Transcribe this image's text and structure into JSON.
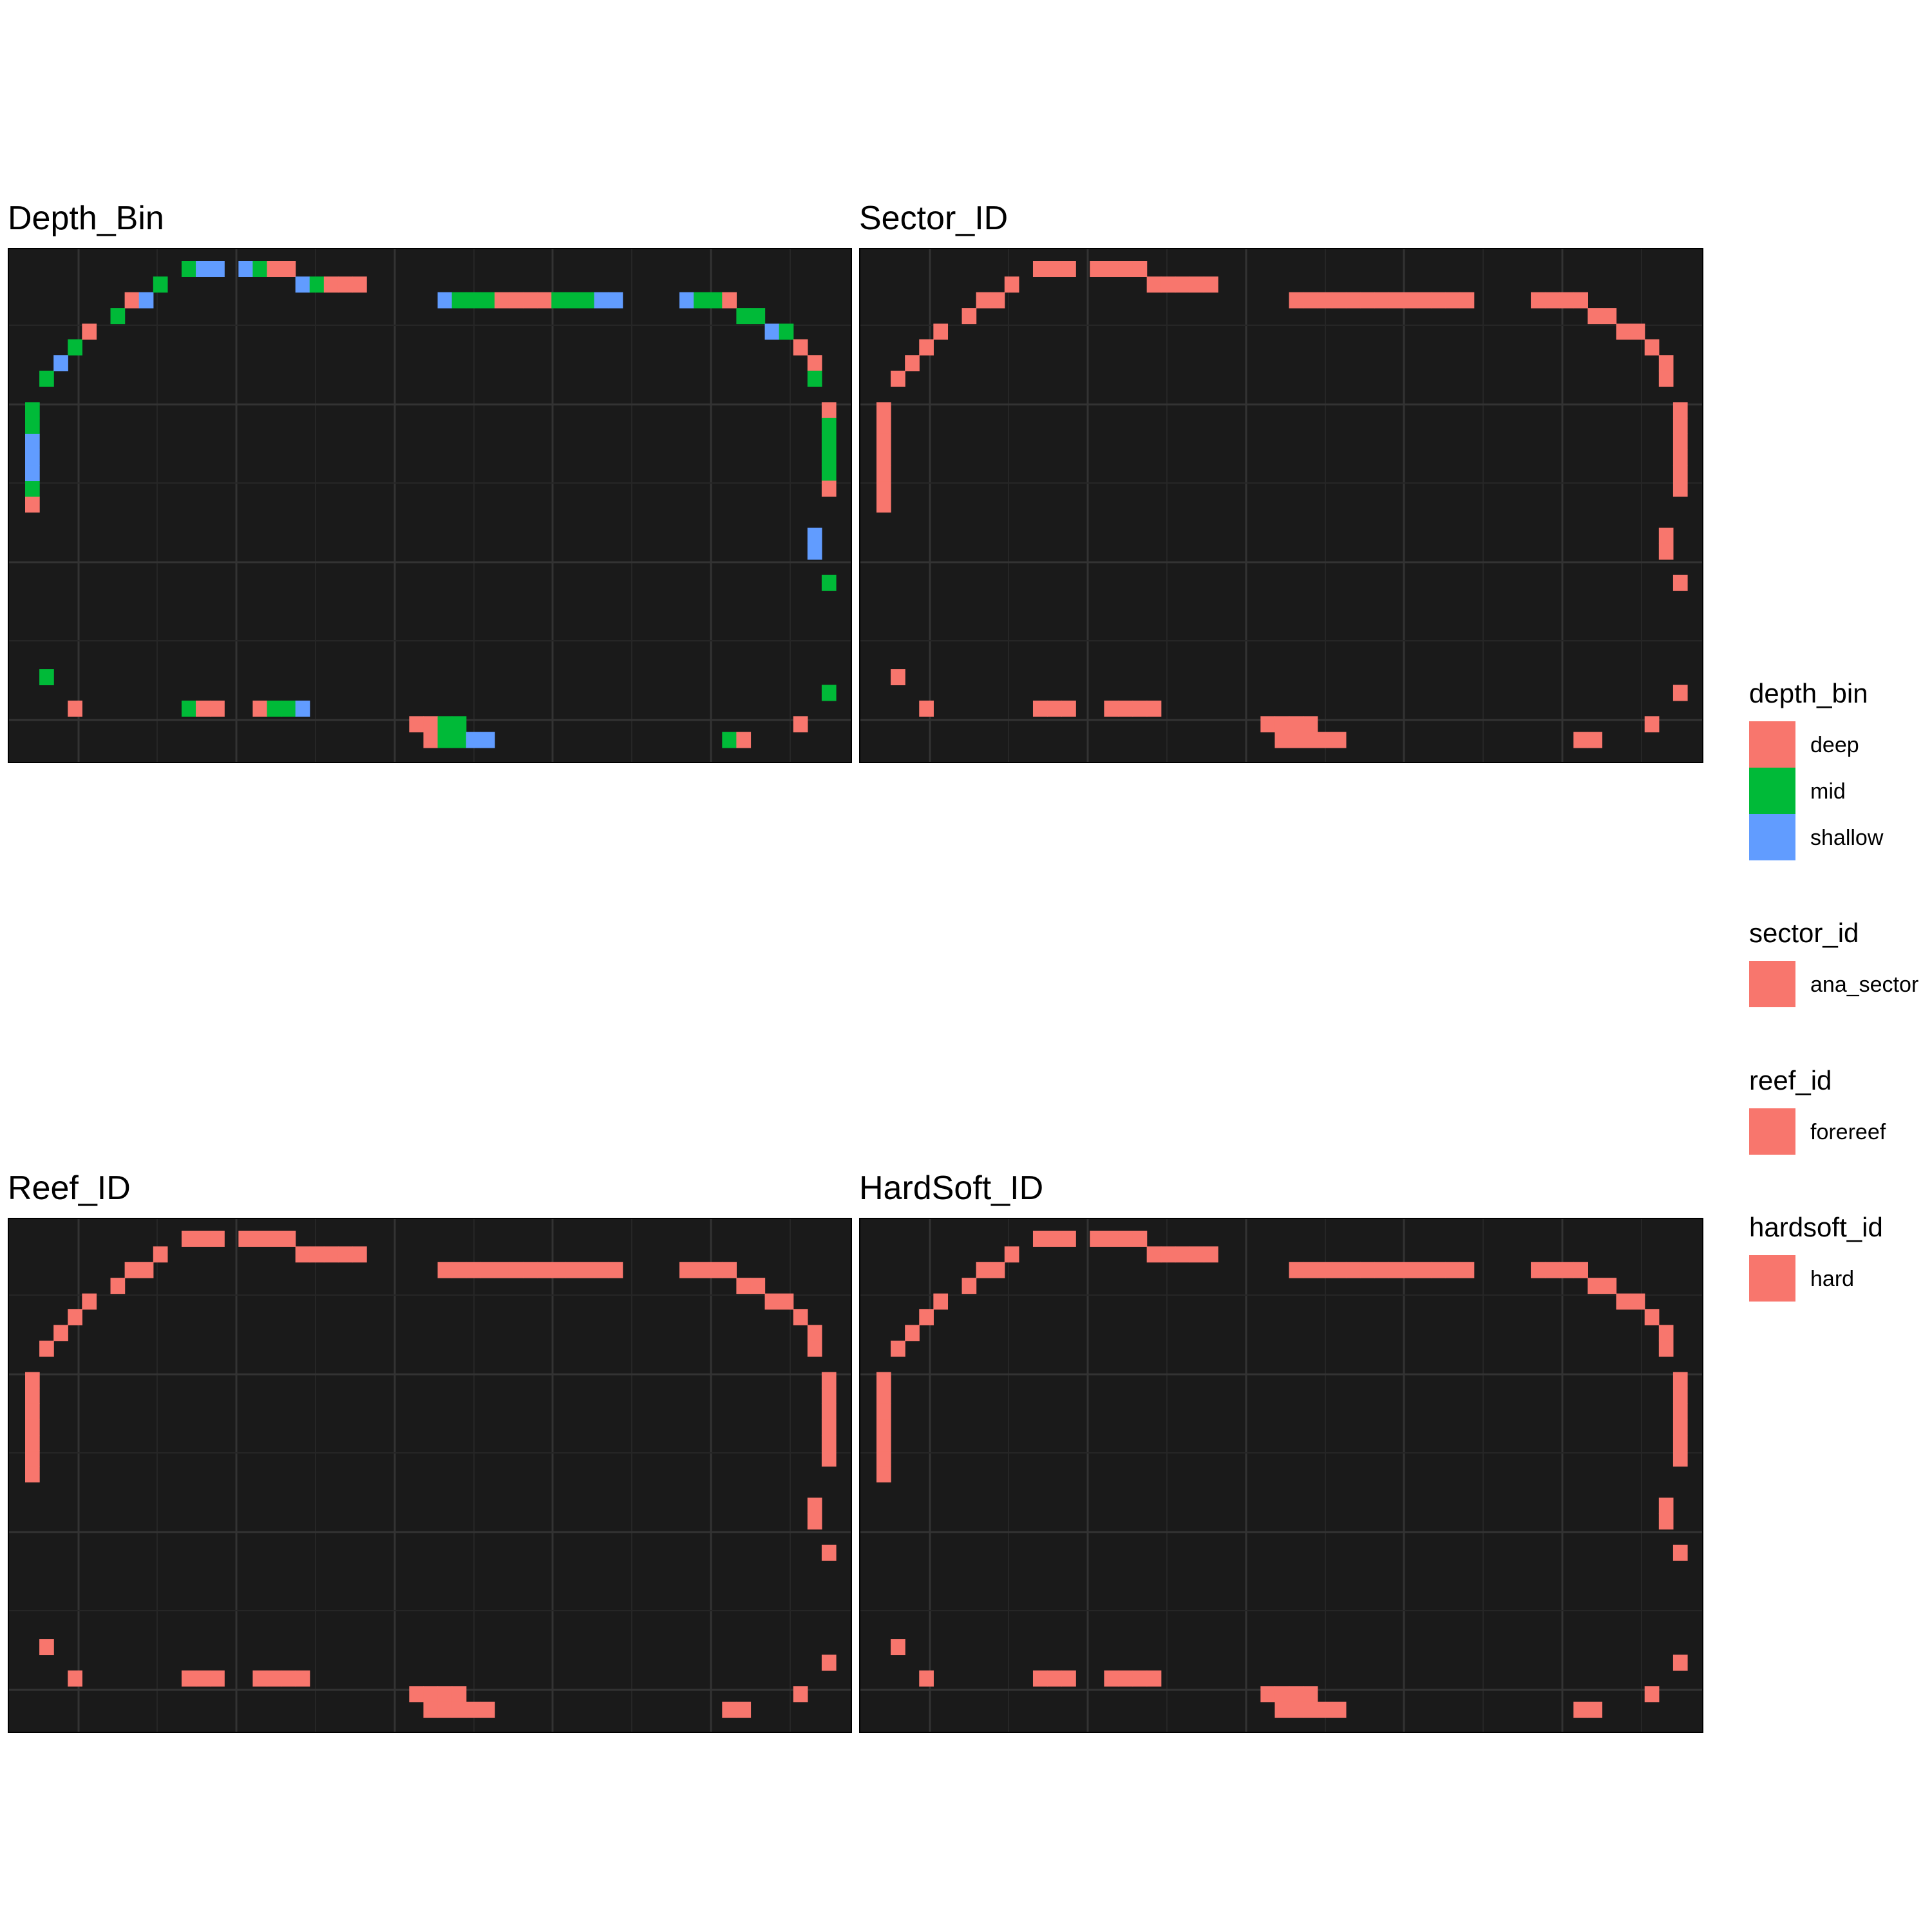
{
  "chart_data": [
    {
      "type": "heatmap",
      "title": "Depth_Bin",
      "xlabel": "",
      "ylabel": "",
      "grid": "on",
      "fill": "depth_bin",
      "cells": [
        {
          "c": 0,
          "r": 1,
          "f": "deep"
        },
        {
          "c": 0,
          "r": 2,
          "f": "mid"
        },
        {
          "c": 0,
          "r": 3,
          "f": "shallow"
        },
        {
          "c": 0,
          "r": 4,
          "f": "shallow"
        },
        {
          "c": 0,
          "r": 5,
          "f": "shallow"
        },
        {
          "c": 0,
          "r": 6,
          "f": "mid"
        },
        {
          "c": 0,
          "r": 7,
          "f": "mid"
        },
        {
          "c": 1,
          "r": 9,
          "f": "mid"
        },
        {
          "c": 2,
          "r": 10,
          "f": "shallow"
        },
        {
          "c": 3,
          "r": 11,
          "f": "mid"
        },
        {
          "c": 4,
          "r": 12,
          "f": "deep"
        },
        {
          "c": 6,
          "r": 13,
          "f": "mid"
        },
        {
          "c": 7,
          "r": 14,
          "f": "deep"
        },
        {
          "c": 8,
          "r": 14,
          "f": "shallow"
        },
        {
          "c": 9,
          "r": 15,
          "f": "mid"
        },
        {
          "c": 11,
          "r": 16,
          "f": "mid"
        },
        {
          "c": 12,
          "r": 16,
          "f": "shallow"
        },
        {
          "c": 13,
          "r": 16,
          "f": "shallow"
        },
        {
          "c": 15,
          "r": 16,
          "f": "shallow"
        },
        {
          "c": 16,
          "r": 16,
          "f": "mid"
        },
        {
          "c": 17,
          "r": 16,
          "f": "deep"
        },
        {
          "c": 18,
          "r": 16,
          "f": "deep"
        },
        {
          "c": 19,
          "r": 15,
          "f": "shallow"
        },
        {
          "c": 20,
          "r": 15,
          "f": "mid"
        },
        {
          "c": 21,
          "r": 15,
          "f": "deep"
        },
        {
          "c": 22,
          "r": 15,
          "f": "deep"
        },
        {
          "c": 23,
          "r": 15,
          "f": "deep"
        },
        {
          "c": 29,
          "r": 14,
          "f": "shallow"
        },
        {
          "c": 30,
          "r": 14,
          "f": "mid"
        },
        {
          "c": 31,
          "r": 14,
          "f": "mid"
        },
        {
          "c": 32,
          "r": 14,
          "f": "mid"
        },
        {
          "c": 33,
          "r": 14,
          "f": "deep"
        },
        {
          "c": 34,
          "r": 14,
          "f": "deep"
        },
        {
          "c": 35,
          "r": 14,
          "f": "deep"
        },
        {
          "c": 36,
          "r": 14,
          "f": "deep"
        },
        {
          "c": 37,
          "r": 14,
          "f": "mid"
        },
        {
          "c": 38,
          "r": 14,
          "f": "mid"
        },
        {
          "c": 39,
          "r": 14,
          "f": "mid"
        },
        {
          "c": 40,
          "r": 14,
          "f": "shallow"
        },
        {
          "c": 41,
          "r": 14,
          "f": "shallow"
        },
        {
          "c": 46,
          "r": 14,
          "f": "shallow"
        },
        {
          "c": 47,
          "r": 14,
          "f": "mid"
        },
        {
          "c": 48,
          "r": 14,
          "f": "mid"
        },
        {
          "c": 49,
          "r": 14,
          "f": "deep"
        },
        {
          "c": 50,
          "r": 13,
          "f": "mid"
        },
        {
          "c": 51,
          "r": 13,
          "f": "mid"
        },
        {
          "c": 52,
          "r": 12,
          "f": "shallow"
        },
        {
          "c": 53,
          "r": 12,
          "f": "mid"
        },
        {
          "c": 54,
          "r": 11,
          "f": "deep"
        },
        {
          "c": 55,
          "r": 10,
          "f": "deep"
        },
        {
          "c": 55,
          "r": 9,
          "f": "mid"
        },
        {
          "c": 56,
          "r": 7,
          "f": "deep"
        },
        {
          "c": 56,
          "r": 6,
          "f": "mid"
        },
        {
          "c": 56,
          "r": 5,
          "f": "mid"
        },
        {
          "c": 56,
          "r": 4,
          "f": "mid"
        },
        {
          "c": 56,
          "r": 3,
          "f": "mid"
        },
        {
          "c": 56,
          "r": 2,
          "f": "deep"
        },
        {
          "c": 55,
          "r": -1,
          "f": "shallow"
        },
        {
          "c": 55,
          "r": -2,
          "f": "shallow"
        },
        {
          "c": 56,
          "r": -4,
          "f": "mid"
        },
        {
          "c": 1,
          "r": -10,
          "f": "mid"
        },
        {
          "c": 56,
          "r": -11,
          "f": "mid"
        },
        {
          "c": 3,
          "r": -12,
          "f": "deep"
        },
        {
          "c": 11,
          "r": -12,
          "f": "mid"
        },
        {
          "c": 12,
          "r": -12,
          "f": "deep"
        },
        {
          "c": 13,
          "r": -12,
          "f": "deep"
        },
        {
          "c": 16,
          "r": -12,
          "f": "deep"
        },
        {
          "c": 17,
          "r": -12,
          "f": "mid"
        },
        {
          "c": 18,
          "r": -12,
          "f": "mid"
        },
        {
          "c": 19,
          "r": -12,
          "f": "shallow"
        },
        {
          "c": 27,
          "r": -13,
          "f": "deep"
        },
        {
          "c": 28,
          "r": -13,
          "f": "deep"
        },
        {
          "c": 29,
          "r": -13,
          "f": "mid"
        },
        {
          "c": 30,
          "r": -13,
          "f": "mid"
        },
        {
          "c": 54,
          "r": -13,
          "f": "deep"
        },
        {
          "c": 28,
          "r": -14,
          "f": "deep"
        },
        {
          "c": 29,
          "r": -14,
          "f": "mid"
        },
        {
          "c": 30,
          "r": -14,
          "f": "mid"
        },
        {
          "c": 31,
          "r": -14,
          "f": "shallow"
        },
        {
          "c": 32,
          "r": -14,
          "f": "shallow"
        },
        {
          "c": 49,
          "r": -14,
          "f": "mid"
        },
        {
          "c": 50,
          "r": -14,
          "f": "deep"
        }
      ]
    },
    {
      "type": "heatmap",
      "title": "Sector_ID",
      "xlabel": "",
      "ylabel": "",
      "grid": "on",
      "fill": "sector_id",
      "value": "ana_sector"
    },
    {
      "type": "heatmap",
      "title": "Reef_ID",
      "xlabel": "",
      "ylabel": "",
      "grid": "on",
      "fill": "reef_id",
      "value": "forereef"
    },
    {
      "type": "heatmap",
      "title": "HardSoft_ID",
      "xlabel": "",
      "ylabel": "",
      "grid": "on",
      "fill": "hardsoft_id",
      "value": "hard"
    }
  ],
  "legends": [
    {
      "title": "depth_bin",
      "items": [
        {
          "label": "deep",
          "color": "#F8766D"
        },
        {
          "label": "mid",
          "color": "#00BA38"
        },
        {
          "label": "shallow",
          "color": "#619CFF"
        }
      ]
    },
    {
      "title": "sector_id",
      "items": [
        {
          "label": "ana_sector",
          "color": "#F8766D"
        }
      ]
    },
    {
      "title": "reef_id",
      "items": [
        {
          "label": "forereef",
          "color": "#F8766D"
        }
      ]
    },
    {
      "title": "hardsoft_id",
      "items": [
        {
          "label": "hard",
          "color": "#F8766D"
        }
      ]
    }
  ],
  "colors": {
    "panel_background": "#1A1A1A",
    "grid_major": "#333333",
    "grid_minor": "#262626",
    "panel_border": "#000000"
  }
}
